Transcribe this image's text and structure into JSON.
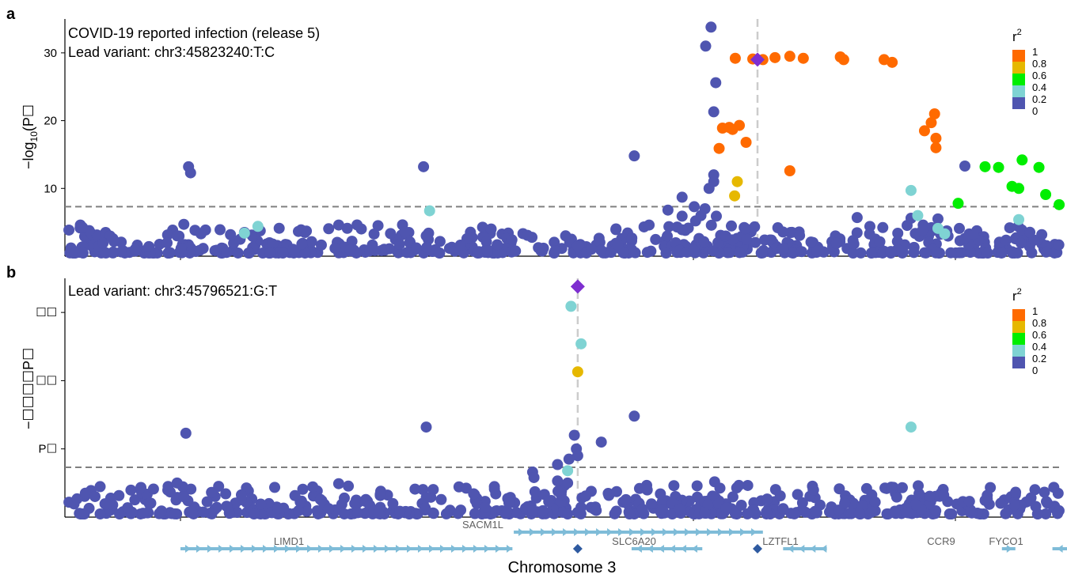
{
  "chart_data": [
    {
      "panel": "a",
      "type": "scatter",
      "title": "COVID-19 reported infection (release 5)",
      "subtitle": "Lead variant: chr3:45823240:T:C",
      "ylabel_main": "−log",
      "ylabel_sub": "10",
      "ylabel_tail": "(P☐",
      "ylim": [
        0,
        35
      ],
      "yticks": [
        10,
        20,
        30
      ],
      "ytick_labels": [
        "10",
        "20",
        "30"
      ],
      "significance_line": 7.3,
      "lead_x": 45.8232,
      "xlim": [
        45.7,
        46.04
      ],
      "legend_title": "r",
      "legend_sup": "2",
      "legend_labels": [
        "1",
        "0.8",
        "0.6",
        "0.4",
        "0.2",
        "0"
      ],
      "ld_colors": [
        "#ff6a00",
        "#e6b800",
        "#00ee00",
        "#7fd3d3",
        "#4f55b0"
      ],
      "lead_color": "#7e2fd0",
      "points": [
        {
          "x": 45.8163,
          "y": 33.8,
          "ld": 4
        },
        {
          "x": 45.8155,
          "y": 31.0,
          "ld": 4
        },
        {
          "x": 45.817,
          "y": 25.6,
          "ld": 4
        },
        {
          "x": 45.8167,
          "y": 21.3,
          "ld": 4
        },
        {
          "x": 45.8049,
          "y": 14.8,
          "ld": 4
        },
        {
          "x": 45.7387,
          "y": 13.2,
          "ld": 4
        },
        {
          "x": 45.7736,
          "y": 13.2,
          "ld": 4
        },
        {
          "x": 45.854,
          "y": 13.3,
          "ld": 4
        },
        {
          "x": 45.8167,
          "y": 12.0,
          "ld": 4
        },
        {
          "x": 45.8167,
          "y": 11.0,
          "ld": 4
        },
        {
          "x": 45.816,
          "y": 10.0,
          "ld": 4
        },
        {
          "x": 45.8154,
          "y": 7.0,
          "ld": 4
        },
        {
          "x": 45.812,
          "y": 8.7,
          "ld": 4
        },
        {
          "x": 45.8138,
          "y": 7.3,
          "ld": 4
        },
        {
          "x": 45.8148,
          "y": 6.0,
          "ld": 4
        },
        {
          "x": 45.8099,
          "y": 6.8,
          "ld": 4
        },
        {
          "x": 45.812,
          "y": 5.9,
          "ld": 4
        },
        {
          "x": 45.814,
          "y": 5.2,
          "ld": 4
        },
        {
          "x": 45.8071,
          "y": 4.6,
          "ld": 4
        },
        {
          "x": 45.812,
          "y": 3.9,
          "ld": 4
        },
        {
          "x": 45.739,
          "y": 12.3,
          "ld": 4
        },
        {
          "x": 45.738,
          "y": 4.7,
          "ld": 4
        },
        {
          "x": 45.761,
          "y": 4.6,
          "ld": 4
        },
        {
          "x": 45.737,
          "y": 3.0,
          "ld": 4
        },
        {
          "x": 45.774,
          "y": 3.0,
          "ld": 4
        },
        {
          "x": 45.838,
          "y": 5.7,
          "ld": 4
        },
        {
          "x": 45.846,
          "y": 5.6,
          "ld": 4
        },
        {
          "x": 45.85,
          "y": 5.5,
          "ld": 4
        },
        {
          "x": 46.033,
          "y": 6.6,
          "ld": 4
        },
        {
          "x": 45.877,
          "y": 3.5,
          "ld": 4
        },
        {
          "x": 46.036,
          "y": 4.2,
          "ld": 4
        },
        {
          "x": 45.8199,
          "y": 29.2,
          "ld": 0
        },
        {
          "x": 45.8225,
          "y": 29.1,
          "ld": 0
        },
        {
          "x": 45.824,
          "y": 29.0,
          "ld": 0
        },
        {
          "x": 45.8258,
          "y": 29.3,
          "ld": 0
        },
        {
          "x": 45.83,
          "y": 29.2,
          "ld": 0
        },
        {
          "x": 45.8355,
          "y": 29.4,
          "ld": 0
        },
        {
          "x": 45.836,
          "y": 29.0,
          "ld": 0
        },
        {
          "x": 45.842,
          "y": 29.0,
          "ld": 0
        },
        {
          "x": 45.8432,
          "y": 28.6,
          "ld": 0
        },
        {
          "x": 45.828,
          "y": 29.5,
          "ld": 0
        },
        {
          "x": 45.818,
          "y": 18.9,
          "ld": 0
        },
        {
          "x": 45.8195,
          "y": 18.7,
          "ld": 0
        },
        {
          "x": 45.8205,
          "y": 19.3,
          "ld": 0
        },
        {
          "x": 45.8215,
          "y": 16.8,
          "ld": 0
        },
        {
          "x": 45.8175,
          "y": 15.9,
          "ld": 0
        },
        {
          "x": 45.819,
          "y": 19.0,
          "ld": 0
        },
        {
          "x": 45.828,
          "y": 12.6,
          "ld": 0
        },
        {
          "x": 45.8495,
          "y": 21.0,
          "ld": 0
        },
        {
          "x": 45.849,
          "y": 19.7,
          "ld": 0
        },
        {
          "x": 45.8497,
          "y": 17.4,
          "ld": 0
        },
        {
          "x": 45.8497,
          "y": 16.0,
          "ld": 0
        },
        {
          "x": 45.848,
          "y": 18.5,
          "ld": 0
        },
        {
          "x": 45.8202,
          "y": 11.0,
          "ld": 1
        },
        {
          "x": 45.8198,
          "y": 8.9,
          "ld": 1
        },
        {
          "x": 45.857,
          "y": 13.2,
          "ld": 2
        },
        {
          "x": 45.859,
          "y": 13.1,
          "ld": 2
        },
        {
          "x": 45.8625,
          "y": 14.2,
          "ld": 2
        },
        {
          "x": 45.865,
          "y": 13.1,
          "ld": 2
        },
        {
          "x": 45.871,
          "y": 13.2,
          "ld": 2
        },
        {
          "x": 45.8735,
          "y": 13.3,
          "ld": 2
        },
        {
          "x": 45.8765,
          "y": 12.9,
          "ld": 2
        },
        {
          "x": 45.8795,
          "y": 11.7,
          "ld": 2
        },
        {
          "x": 45.884,
          "y": 17.0,
          "ld": 2
        },
        {
          "x": 45.8895,
          "y": 16.2,
          "ld": 2
        },
        {
          "x": 45.8925,
          "y": 16.2,
          "ld": 2
        },
        {
          "x": 45.897,
          "y": 15.8,
          "ld": 2
        },
        {
          "x": 45.9,
          "y": 15.7,
          "ld": 2
        },
        {
          "x": 45.9015,
          "y": 15.6,
          "ld": 2
        },
        {
          "x": 45.9055,
          "y": 15.6,
          "ld": 2
        },
        {
          "x": 45.895,
          "y": 13.5,
          "ld": 2
        },
        {
          "x": 45.8975,
          "y": 11.1,
          "ld": 2
        },
        {
          "x": 45.861,
          "y": 10.3,
          "ld": 2
        },
        {
          "x": 45.862,
          "y": 10.0,
          "ld": 2
        },
        {
          "x": 45.866,
          "y": 9.1,
          "ld": 2
        },
        {
          "x": 45.868,
          "y": 7.6,
          "ld": 2
        },
        {
          "x": 45.853,
          "y": 7.8,
          "ld": 2
        },
        {
          "x": 45.899,
          "y": 7.0,
          "ld": 2
        },
        {
          "x": 45.9015,
          "y": 6.3,
          "ld": 2
        },
        {
          "x": 45.846,
          "y": 9.7,
          "ld": 3
        },
        {
          "x": 45.7745,
          "y": 6.7,
          "ld": 3
        },
        {
          "x": 45.747,
          "y": 3.4,
          "ld": 3
        },
        {
          "x": 45.749,
          "y": 4.4,
          "ld": 3
        },
        {
          "x": 45.847,
          "y": 6.0,
          "ld": 3
        },
        {
          "x": 45.85,
          "y": 4.1,
          "ld": 3
        },
        {
          "x": 45.851,
          "y": 3.3,
          "ld": 3
        },
        {
          "x": 45.862,
          "y": 5.4,
          "ld": 3
        }
      ],
      "lead_point": {
        "x": 45.8232,
        "y": 29.0
      }
    },
    {
      "panel": "b",
      "type": "scatter",
      "subtitle": "Lead variant: chr3:45796521:G:T",
      "ylabel_main": "−☐☐☐☐P☐",
      "ytick_labels": [
        "P☐",
        "☐☐",
        "☐☐"
      ],
      "ytick_values": [
        10,
        20,
        30
      ],
      "ylim": [
        0,
        35
      ],
      "significance_line": 7.3,
      "lead_x": 45.7965,
      "legend_title": "r",
      "legend_sup": "2",
      "legend_labels": [
        "1",
        "0.8",
        "0.6",
        "0.4",
        "0.2",
        "0"
      ],
      "points": [
        {
          "x": 45.7383,
          "y": 12.3,
          "ld": 4
        },
        {
          "x": 45.774,
          "y": 13.2,
          "ld": 4
        },
        {
          "x": 45.8049,
          "y": 14.8,
          "ld": 4
        },
        {
          "x": 45.8,
          "y": 11.0,
          "ld": 4
        },
        {
          "x": 45.796,
          "y": 12.0,
          "ld": 4
        },
        {
          "x": 45.7963,
          "y": 10.0,
          "ld": 4
        },
        {
          "x": 45.7965,
          "y": 9.0,
          "ld": 4
        },
        {
          "x": 45.7952,
          "y": 8.5,
          "ld": 4
        },
        {
          "x": 45.7935,
          "y": 7.7,
          "ld": 4
        },
        {
          "x": 45.7898,
          "y": 6.6,
          "ld": 4
        },
        {
          "x": 45.79,
          "y": 5.8,
          "ld": 4
        },
        {
          "x": 45.7935,
          "y": 5.3,
          "ld": 4
        },
        {
          "x": 45.795,
          "y": 5.0,
          "ld": 4
        },
        {
          "x": 45.737,
          "y": 5.0,
          "ld": 4
        },
        {
          "x": 45.761,
          "y": 4.9,
          "ld": 4
        },
        {
          "x": 45.904,
          "y": 6.4,
          "ld": 4
        },
        {
          "x": 45.906,
          "y": 5.0,
          "ld": 4
        },
        {
          "x": 45.7955,
          "y": 30.9,
          "ld": 3
        },
        {
          "x": 45.797,
          "y": 25.4,
          "ld": 3
        },
        {
          "x": 45.846,
          "y": 13.2,
          "ld": 3
        },
        {
          "x": 45.795,
          "y": 6.8,
          "ld": 3
        },
        {
          "x": 45.7965,
          "y": 21.3,
          "ld": 1
        }
      ],
      "lead_point": {
        "x": 45.7965,
        "y": 33.8
      }
    }
  ],
  "xlabel": "Chromosome 3",
  "panel_labels": [
    "a",
    "b"
  ],
  "genes": [
    {
      "name": "LIMD1",
      "start": 45.7375,
      "end": 45.7868,
      "row": "lower",
      "dir": "right"
    },
    {
      "name": "SACM1L",
      "start": 45.787,
      "end": 45.824,
      "row": "upper",
      "dir": "right"
    },
    {
      "name": "SLC6A20",
      "start": 45.8045,
      "end": 45.815,
      "row": "lower",
      "dir": "left"
    },
    {
      "name": "LZTFL1",
      "start": 45.827,
      "end": 45.8335,
      "row": "lower",
      "dir": "left"
    },
    {
      "name": "CCR9",
      "start": 45.8595,
      "end": 45.8615,
      "row": "lower",
      "dir": "right"
    },
    {
      "name": "FYCO1",
      "start": 45.867,
      "end": 45.873,
      "row": "lower",
      "dir": "left"
    }
  ]
}
